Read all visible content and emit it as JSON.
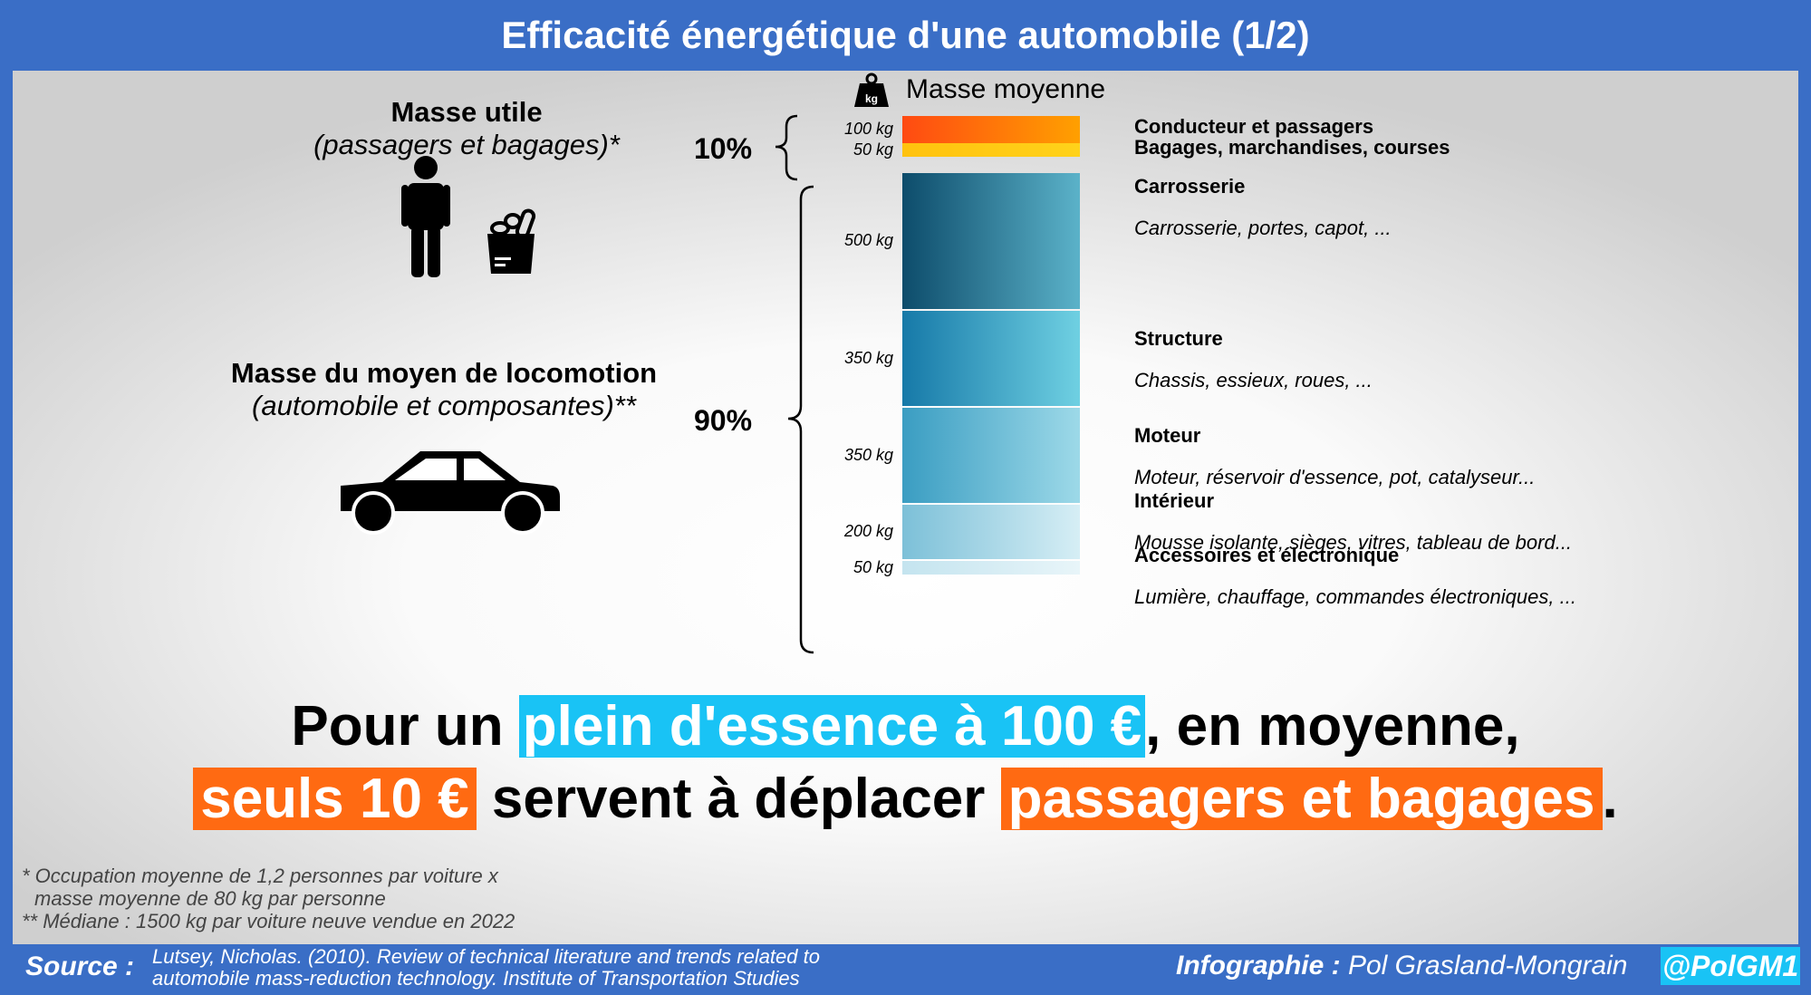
{
  "title": "Efficacité énergétique d'une automobile (1/2)",
  "useful_mass": {
    "heading": "Masse utile",
    "subheading": "(passagers et bagages)*",
    "icons": [
      "person-icon",
      "grocery-bag-icon"
    ]
  },
  "vehicle_mass": {
    "heading": "Masse du moyen de locomotion",
    "subheading": "(automobile et composantes)**",
    "icon": "car-icon"
  },
  "chart_data": {
    "type": "bar",
    "title": "Masse moyenne",
    "unit": "kg",
    "groups": [
      {
        "label": "10%",
        "categories": [
          0,
          1
        ]
      },
      {
        "label": "90%",
        "categories": [
          2,
          3,
          4,
          5,
          6
        ]
      }
    ],
    "categories": [
      {
        "name": "Conducteur et passagers",
        "description": "",
        "value": 100,
        "value_label": "100 kg",
        "colors": [
          "#ff4a12",
          "#ffa000"
        ]
      },
      {
        "name": "Bagages, marchandises, courses",
        "description": "",
        "value": 50,
        "value_label": "50 kg",
        "colors": [
          "#ffc20e",
          "#ffd21a"
        ]
      },
      {
        "name": "Carrosserie",
        "description": "Carrosserie, portes, capot, ...",
        "value": 500,
        "value_label": "500 kg",
        "colors": [
          "#0d4c6b",
          "#5bb2c9"
        ]
      },
      {
        "name": "Structure",
        "description": "Chassis, essieux, roues, ...",
        "value": 350,
        "value_label": "350 kg",
        "colors": [
          "#1679a8",
          "#6fd0e2"
        ]
      },
      {
        "name": "Moteur",
        "description": "Moteur, réservoir d'essence, pot, catalyseur...",
        "value": 350,
        "value_label": "350 kg",
        "colors": [
          "#3a9dc2",
          "#9dd9e8"
        ]
      },
      {
        "name": "Intérieur",
        "description": "Mousse isolante, sièges, vitres, tableau de bord...",
        "value": 200,
        "value_label": "200 kg",
        "colors": [
          "#7cc0d8",
          "#d6eef5"
        ]
      },
      {
        "name": "Accessoires et électronique",
        "description": "Lumière, chauffage, commandes électroniques, ...",
        "value": 50,
        "value_label": "50 kg",
        "colors": [
          "#c4e4ef",
          "#e8f5f9"
        ]
      }
    ]
  },
  "headline": {
    "line1_a": "Pour un ",
    "line1_highlight": "plein d'essence à 100 €",
    "line1_b": ", en moyenne,",
    "line2_highlight_a": "seuls 10 €",
    "line2_mid": " servent à déplacer ",
    "line2_highlight_b": "passagers et bagages",
    "line2_end": "."
  },
  "footnotes": {
    "note1_line1": "* Occupation moyenne de 1,2 personnes par voiture x",
    "note1_line2": "masse moyenne de 80 kg par personne",
    "note2": "** Médiane : 1500 kg par voiture neuve vendue en 2022"
  },
  "footer": {
    "source_label": "Source :",
    "source_line1": "Lutsey, Nicholas. (2010). Review of technical literature and trends related to",
    "source_line2": "automobile mass-reduction technology. Institute of Transportation Studies",
    "credit_label": "Infographie :",
    "credit_name": " Pol Grasland-Mongrain",
    "handle": "@PolGM1"
  },
  "colors": {
    "frame": "#3a6ec6",
    "highlight_blue": "#19c3f5",
    "highlight_orange": "#ff6a12"
  }
}
